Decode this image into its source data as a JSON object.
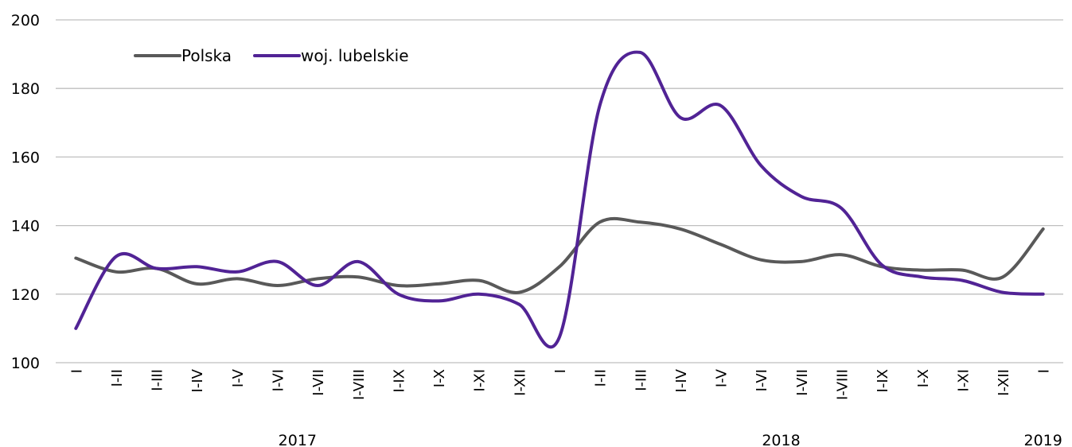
{
  "chart_data": {
    "type": "line",
    "title": "",
    "xlabel": "",
    "ylabel": "",
    "ylim": [
      100,
      200
    ],
    "yticks": [
      100,
      120,
      140,
      160,
      180,
      200
    ],
    "grid": "horizontal",
    "legend_position": "top-left",
    "categories": [
      "I",
      "I-II",
      "I-III",
      "I-IV",
      "I-V",
      "I-VI",
      "I-VII",
      "I-VIII",
      "I-IX",
      "I-X",
      "I-XI",
      "I-XII",
      "I",
      "I-II",
      "I-III",
      "I-IV",
      "I-V",
      "I-VI",
      "I-VII",
      "I-VIII",
      "I-IX",
      "I-X",
      "I-XI",
      "I-XII",
      "I"
    ],
    "groups": [
      {
        "label": "2017",
        "start": 0,
        "end": 11
      },
      {
        "label": "2018",
        "start": 12,
        "end": 23
      },
      {
        "label": "2019",
        "start": 24,
        "end": 24
      }
    ],
    "series": [
      {
        "name": "Polska",
        "color": "#595959",
        "values": [
          130.5,
          126.5,
          127.5,
          123.0,
          124.5,
          122.5,
          124.5,
          125.0,
          122.5,
          123.0,
          124.0,
          120.5,
          128.0,
          141.0,
          141.0,
          139.0,
          134.5,
          130.0,
          129.5,
          131.5,
          128.0,
          127.0,
          127.0,
          125.0,
          139.0
        ]
      },
      {
        "name": "woj. lubelskie",
        "color": "#512395",
        "values": [
          110.0,
          131.0,
          127.5,
          128.0,
          126.5,
          129.5,
          122.5,
          129.5,
          120.0,
          118.0,
          120.0,
          117.0,
          107.5,
          175.0,
          190.5,
          171.5,
          175.0,
          157.5,
          148.5,
          145.0,
          128.5,
          125.0,
          124.0,
          120.5,
          120.0
        ]
      }
    ]
  }
}
